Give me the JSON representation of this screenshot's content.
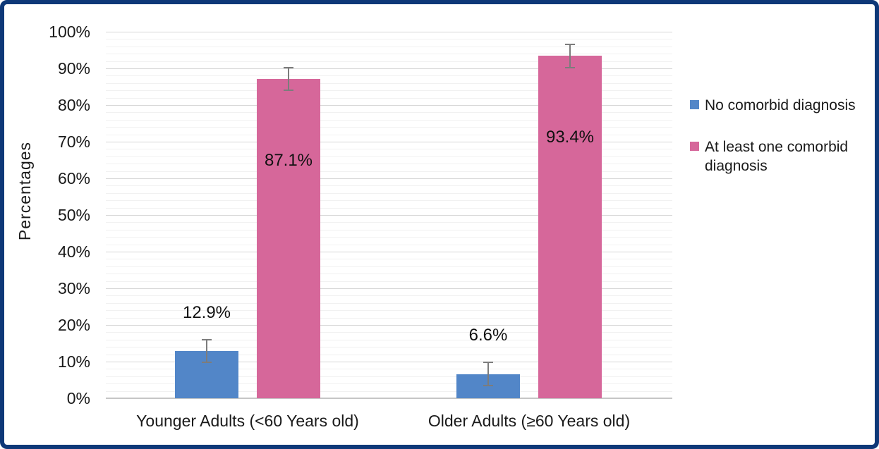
{
  "frame": {
    "border_color": "#0E3878",
    "background": "#FFFFFF"
  },
  "chart_data": {
    "type": "bar",
    "title": "",
    "categories": [
      "Younger Adults (<60 Years old)",
      "Older Adults (≥60 Years old)"
    ],
    "series": [
      {
        "name": "No comorbid diagnosis",
        "color": "#5286C8",
        "values": [
          12.9,
          6.6
        ],
        "errors": [
          3.3,
          3.4
        ],
        "labels": [
          "12.9%",
          "6.6%"
        ],
        "label_placement": "above"
      },
      {
        "name": "At least one comorbid diagnosis",
        "color": "#D6679A",
        "values": [
          87.1,
          93.4
        ],
        "errors": [
          3.2,
          3.4
        ],
        "labels": [
          "87.1%",
          "93.4%"
        ],
        "label_placement": "inside"
      }
    ],
    "ylabel": "Percentages",
    "xlabel": "",
    "ylim": [
      0,
      100
    ],
    "ytick_step": 10,
    "yminor_step": 2,
    "ytick_labels": [
      "0%",
      "10%",
      "20%",
      "30%",
      "40%",
      "50%",
      "60%",
      "70%",
      "80%",
      "90%",
      "100%"
    ],
    "grid": true,
    "legend_position": "right"
  },
  "styles": {
    "grid_major_color": "#D6D6D6",
    "grid_minor_color": "#F1F1F1",
    "axis_line_color": "#C6C6C6",
    "error_bar_color": "#7C7C7C",
    "text_color": "#1A1A1A"
  }
}
